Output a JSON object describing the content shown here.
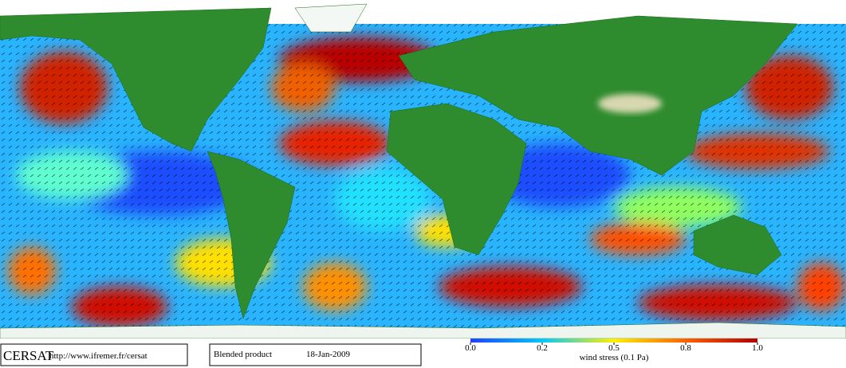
{
  "header": {
    "logo": "CERSAT",
    "url": "http://www.ifremer.fr/cersat"
  },
  "product": {
    "name": "Blended product",
    "date": "18-Jan-2009"
  },
  "colorbar": {
    "label": "wind stress (0.1 Pa)",
    "ticks": [
      {
        "value": 0,
        "label": "0.0"
      },
      0.2,
      0.5,
      0.8,
      {
        "value": 1,
        "label": "1.0"
      }
    ]
  }
}
